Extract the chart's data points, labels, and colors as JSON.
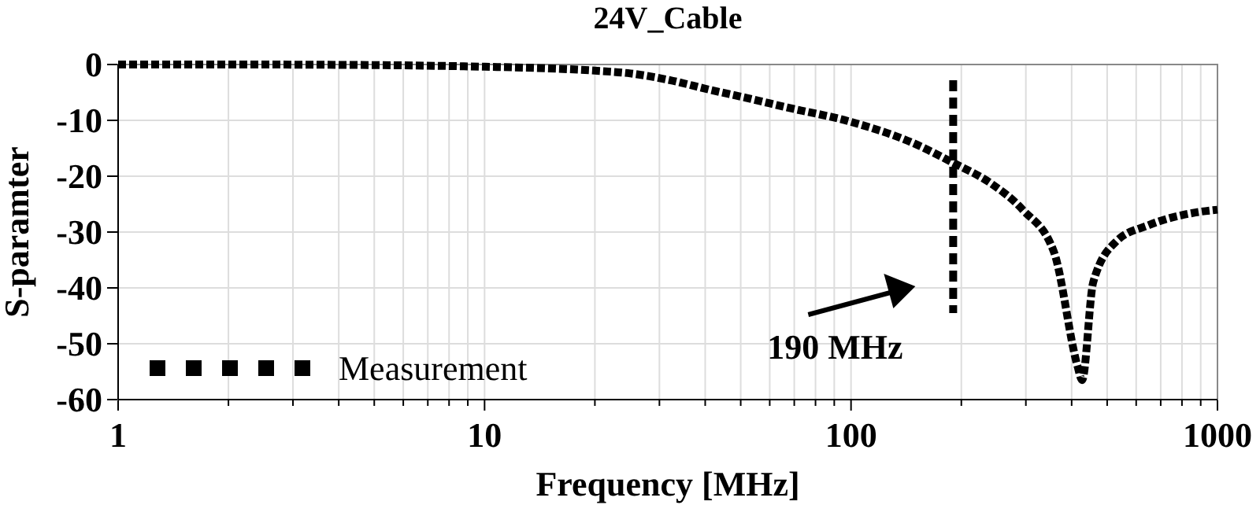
{
  "chart_data": {
    "type": "line",
    "title": "24V_Cable",
    "xlabel": "Frequency [MHz]",
    "ylabel": "S-paramter",
    "log": "x",
    "grid": true,
    "legend": "bottom left",
    "line_style": "dotted",
    "xlim": [
      1,
      1000
    ],
    "ylim": [
      -60,
      0
    ],
    "xticks": [
      1,
      {
        "value": 2,
        "label": null
      },
      {
        "value": 3,
        "label": null
      },
      {
        "value": 4,
        "label": null
      },
      {
        "value": 5,
        "label": null
      },
      {
        "value": 6,
        "label": null
      },
      {
        "value": 7,
        "label": null
      },
      {
        "value": 8,
        "label": null
      },
      {
        "value": 9,
        "label": null
      },
      10,
      {
        "value": 20,
        "label": null
      },
      {
        "value": 30,
        "label": null
      },
      {
        "value": 40,
        "label": null
      },
      {
        "value": 50,
        "label": null
      },
      {
        "value": 60,
        "label": null
      },
      {
        "value": 70,
        "label": null
      },
      {
        "value": 80,
        "label": null
      },
      {
        "value": 90,
        "label": null
      },
      100,
      {
        "value": 200,
        "label": null
      },
      {
        "value": 300,
        "label": null
      },
      {
        "value": 400,
        "label": null
      },
      {
        "value": 500,
        "label": null
      },
      {
        "value": 600,
        "label": null
      },
      {
        "value": 700,
        "label": null
      },
      {
        "value": 800,
        "label": null
      },
      {
        "value": 900,
        "label": null
      },
      1000
    ],
    "yticks": [
      -60,
      -50,
      -40,
      -30,
      -20,
      -10,
      0
    ],
    "x": [
      1,
      2,
      5,
      10,
      15,
      20,
      25,
      32,
      41,
      52,
      67,
      99,
      147,
      190,
      241,
      294,
      358,
      415,
      427,
      458,
      531,
      647,
      871,
      1000
    ],
    "series": [
      {
        "name": "Measurement",
        "color": "#000000",
        "values": [
          0,
          0,
          -0.1,
          -0.4,
          -0.7,
          -1.1,
          -1.6,
          -2.8,
          -4.5,
          -6,
          -7.7,
          -10.2,
          -14,
          -17.6,
          -21.3,
          -26,
          -33.6,
          -54,
          -56.5,
          -39,
          -31.6,
          -28.8,
          -26.5,
          -26
        ]
      }
    ],
    "ref_lines": [
      {
        "axis": "x",
        "value": 190,
        "label": "190 MHz",
        "color": "#000000",
        "line_style": "dashed"
      }
    ]
  }
}
